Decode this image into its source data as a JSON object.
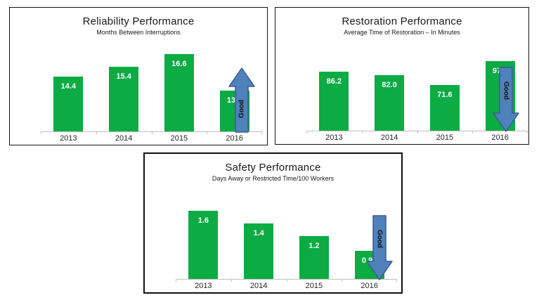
{
  "colors": {
    "bar_green": "#0cab44",
    "value_label": "#ffffff",
    "arrow_fill": "#4f81bd",
    "arrow_border": "#385d8a",
    "arrow_text": "#111111",
    "axis_line": "#bfbfbf",
    "panel_border": "#111111",
    "title_text": "#1a1a1a"
  },
  "chart_data": [
    {
      "type": "bar",
      "title": "Reliability Performance",
      "subtitle": "Months Between Interruptions",
      "categories": [
        "2013",
        "2014",
        "2015",
        "2016"
      ],
      "values": [
        14.4,
        15.4,
        16.6,
        13.0
      ],
      "value_labels": [
        "14.4",
        "15.4",
        "16.6",
        "13.0"
      ],
      "ylim": [
        9,
        18
      ],
      "grid": false,
      "legend": false,
      "annotation": {
        "direction": "up",
        "label": "Good"
      }
    },
    {
      "type": "bar",
      "title": "Restoration Performance",
      "subtitle": "Average Time of Restoration – In Minutes",
      "categories": [
        "2013",
        "2014",
        "2015",
        "2016"
      ],
      "values": [
        86.2,
        82.0,
        71.6,
        97.9
      ],
      "value_labels": [
        "86.2",
        "82.0",
        "71.6",
        "97.9"
      ],
      "ylim": [
        21,
        122
      ],
      "grid": false,
      "legend": false,
      "annotation": {
        "direction": "down",
        "label": "Good"
      }
    },
    {
      "type": "bar",
      "title": "Safety Performance",
      "subtitle": "Days Away or Restricted Time/100 Workers",
      "categories": [
        "2013",
        "2014",
        "2015",
        "2016"
      ],
      "values": [
        1.6,
        1.4,
        1.2,
        0.95
      ],
      "value_labels": [
        "1.6",
        "1.4",
        "1.2",
        "0.95"
      ],
      "ylim": [
        0.5,
        1.98
      ],
      "grid": false,
      "legend": false,
      "annotation": {
        "direction": "down",
        "label": "Good"
      }
    }
  ]
}
